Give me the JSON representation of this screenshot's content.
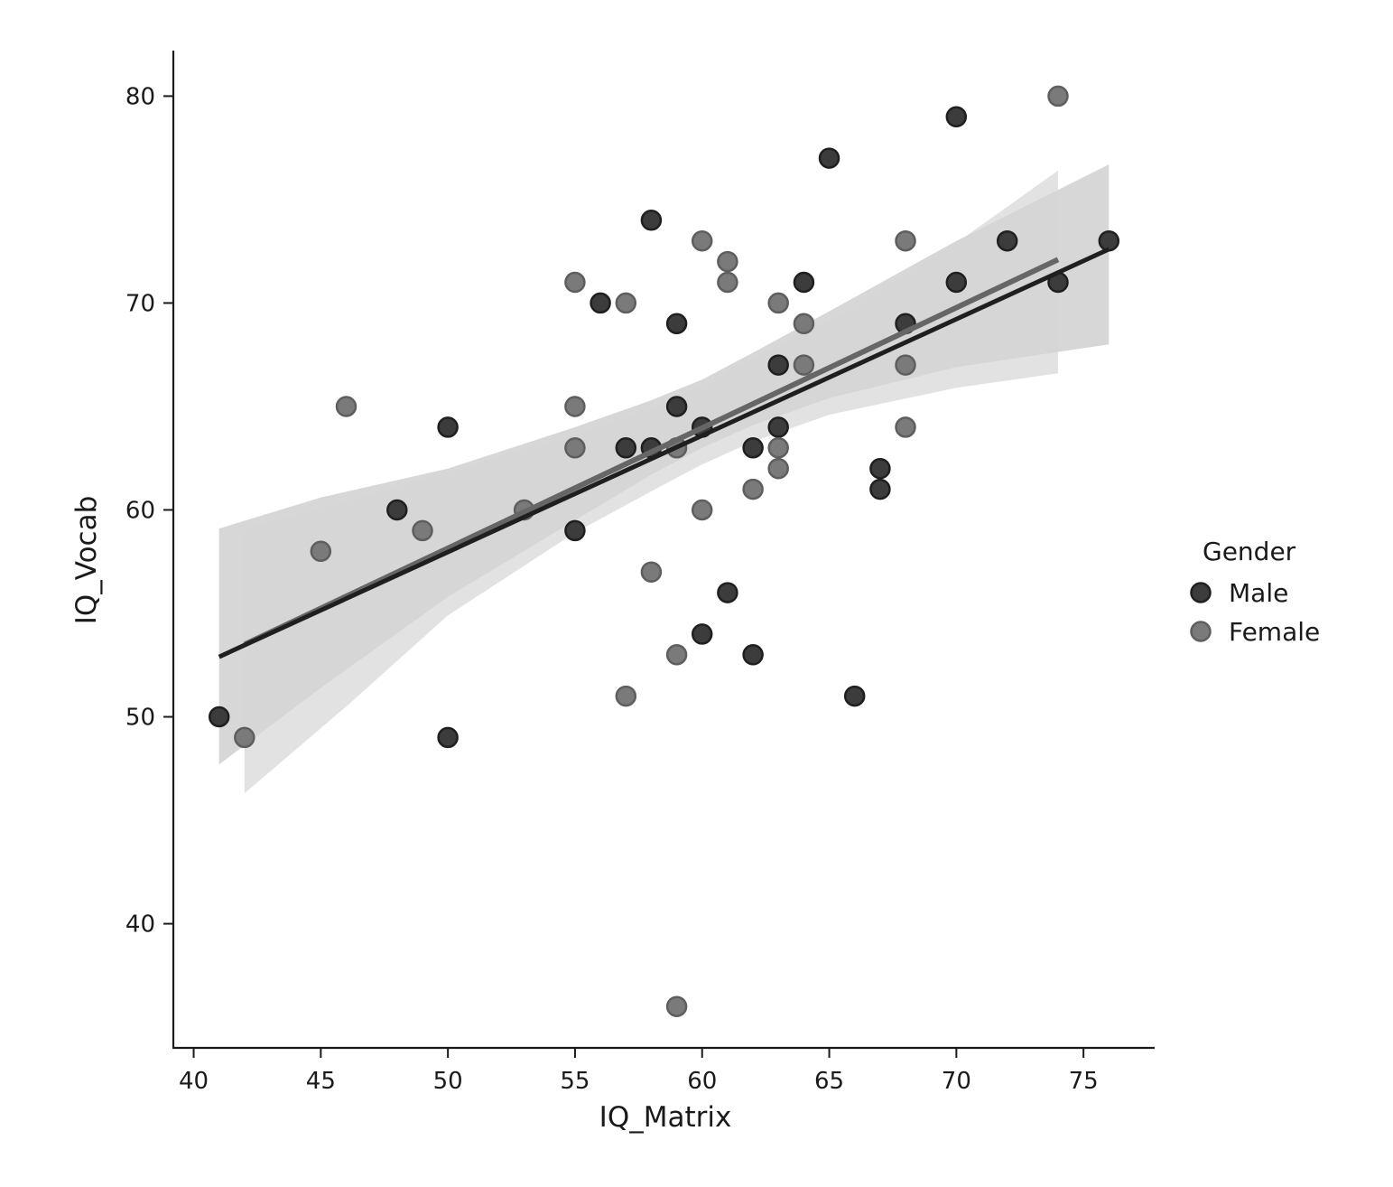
{
  "chart_data": {
    "type": "scatter",
    "title": "",
    "xlabel": "IQ_Matrix",
    "ylabel": "IQ_Vocab",
    "xlim": [
      39.2,
      77.8
    ],
    "ylim": [
      34,
      82.2
    ],
    "xticks": [
      40,
      45,
      50,
      55,
      60,
      65,
      70,
      75
    ],
    "yticks": [
      40,
      50,
      60,
      70,
      80
    ],
    "grid": false,
    "legend": {
      "title": "Gender",
      "placement": "right"
    },
    "series": [
      {
        "name": "Male",
        "color": "#3c3c3c",
        "edge_color": "#1f1f1f",
        "ci_color": "#c9c9c9",
        "line_color": "#1f1f1f",
        "points": [
          [
            41,
            50
          ],
          [
            48,
            60
          ],
          [
            50,
            64
          ],
          [
            50,
            49
          ],
          [
            55,
            59
          ],
          [
            56,
            70
          ],
          [
            57,
            63
          ],
          [
            58,
            74
          ],
          [
            58,
            63
          ],
          [
            59,
            69
          ],
          [
            59,
            65
          ],
          [
            60,
            64
          ],
          [
            60,
            54
          ],
          [
            61,
            56
          ],
          [
            62,
            63
          ],
          [
            62,
            53
          ],
          [
            63,
            67
          ],
          [
            63,
            64
          ],
          [
            64,
            71
          ],
          [
            65,
            77
          ],
          [
            66,
            51
          ],
          [
            67,
            62
          ],
          [
            67,
            61
          ],
          [
            68,
            69
          ],
          [
            70,
            79
          ],
          [
            70,
            71
          ],
          [
            72,
            73
          ],
          [
            74,
            71
          ],
          [
            76,
            73
          ]
        ],
        "regression": {
          "x": [
            41,
            76
          ],
          "y": [
            52.9,
            72.6
          ]
        },
        "ci": {
          "x": [
            41,
            45,
            50,
            55,
            58,
            60,
            62,
            65,
            70,
            76
          ],
          "lower": [
            47.7,
            51.4,
            55.8,
            59.5,
            61.7,
            63.0,
            64.1,
            65.4,
            66.9,
            68.0
          ],
          "upper": [
            59.1,
            60.6,
            62.0,
            64.0,
            65.3,
            66.3,
            67.6,
            69.6,
            73.0,
            76.7
          ]
        }
      },
      {
        "name": "Female",
        "color": "#7a7a7a",
        "edge_color": "#5e5e5e",
        "ci_color": "#d6d6d6",
        "line_color": "#666666",
        "points": [
          [
            42,
            49
          ],
          [
            45,
            58
          ],
          [
            46,
            65
          ],
          [
            49,
            59
          ],
          [
            53,
            60
          ],
          [
            55,
            71
          ],
          [
            55,
            65
          ],
          [
            55,
            63
          ],
          [
            57,
            70
          ],
          [
            57,
            51
          ],
          [
            58,
            57
          ],
          [
            59,
            63
          ],
          [
            59,
            53
          ],
          [
            59,
            36
          ],
          [
            60,
            73
          ],
          [
            60,
            60
          ],
          [
            61,
            72
          ],
          [
            61,
            71
          ],
          [
            62,
            61
          ],
          [
            63,
            70
          ],
          [
            63,
            63
          ],
          [
            63,
            62
          ],
          [
            64,
            69
          ],
          [
            64,
            67
          ],
          [
            68,
            73
          ],
          [
            68,
            67
          ],
          [
            68,
            64
          ],
          [
            74,
            80
          ]
        ],
        "regression": {
          "x": [
            42,
            74
          ],
          "y": [
            53.5,
            72.1
          ]
        },
        "ci": {
          "x": [
            42,
            46,
            50,
            55,
            58,
            60,
            62,
            65,
            70,
            74
          ],
          "lower": [
            46.3,
            50.5,
            54.9,
            58.9,
            60.9,
            62.2,
            63.3,
            64.6,
            65.9,
            66.6
          ],
          "upper": [
            59.1,
            60.4,
            61.8,
            63.6,
            64.9,
            66.0,
            67.3,
            69.1,
            72.9,
            76.4
          ]
        }
      }
    ]
  }
}
